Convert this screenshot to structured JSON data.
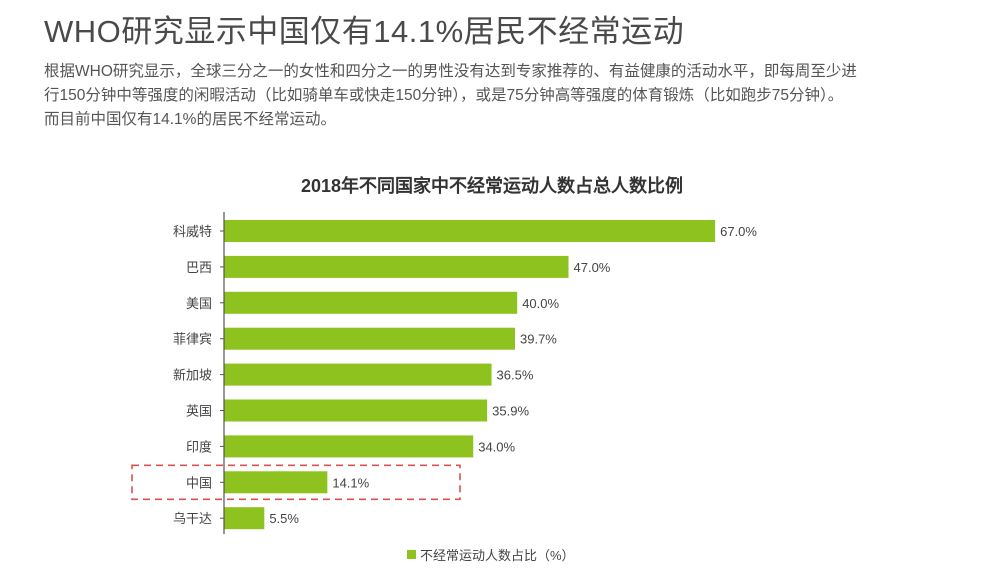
{
  "header": {
    "title": "WHO研究显示中国仅有14.1%居民不经常运动",
    "paragraph_lines": [
      "根据WHO研究显示，全球三分之一的女性和四分之一的男性没有达到专家推荐的、有益健康的活动水平，即每周至少进",
      "行150分钟中等强度的闲暇活动（比如骑单车或快走150分钟），或是75分钟高等强度的体育锻炼（比如跑步75分钟）。",
      "而目前中国仅有14.1%的居民不经常运动。"
    ]
  },
  "colors": {
    "bar": "#8dc21f",
    "axis": "#555555",
    "highlight_border": "#d9534f"
  },
  "chart_data": {
    "type": "bar",
    "orientation": "horizontal",
    "title": "2018年不同国家中不经常运动人数占总人数比例",
    "categories": [
      "科威特",
      "巴西",
      "美国",
      "菲律宾",
      "新加坡",
      "英国",
      "印度",
      "中国",
      "乌干达"
    ],
    "values": [
      67.0,
      47.0,
      40.0,
      39.7,
      36.5,
      35.9,
      34.0,
      14.1,
      5.5
    ],
    "value_labels": [
      "67.0%",
      "47.0%",
      "40.0%",
      "39.7%",
      "36.5%",
      "35.9%",
      "34.0%",
      "14.1%",
      "5.5%"
    ],
    "series": [
      {
        "name": "不经常运动人数占比（%）",
        "values": [
          67.0,
          47.0,
          40.0,
          39.7,
          36.5,
          35.9,
          34.0,
          14.1,
          5.5
        ]
      }
    ],
    "highlight_category": "中国",
    "xlim": [
      0,
      70
    ],
    "grid": false,
    "legend_position": "bottom-center"
  }
}
